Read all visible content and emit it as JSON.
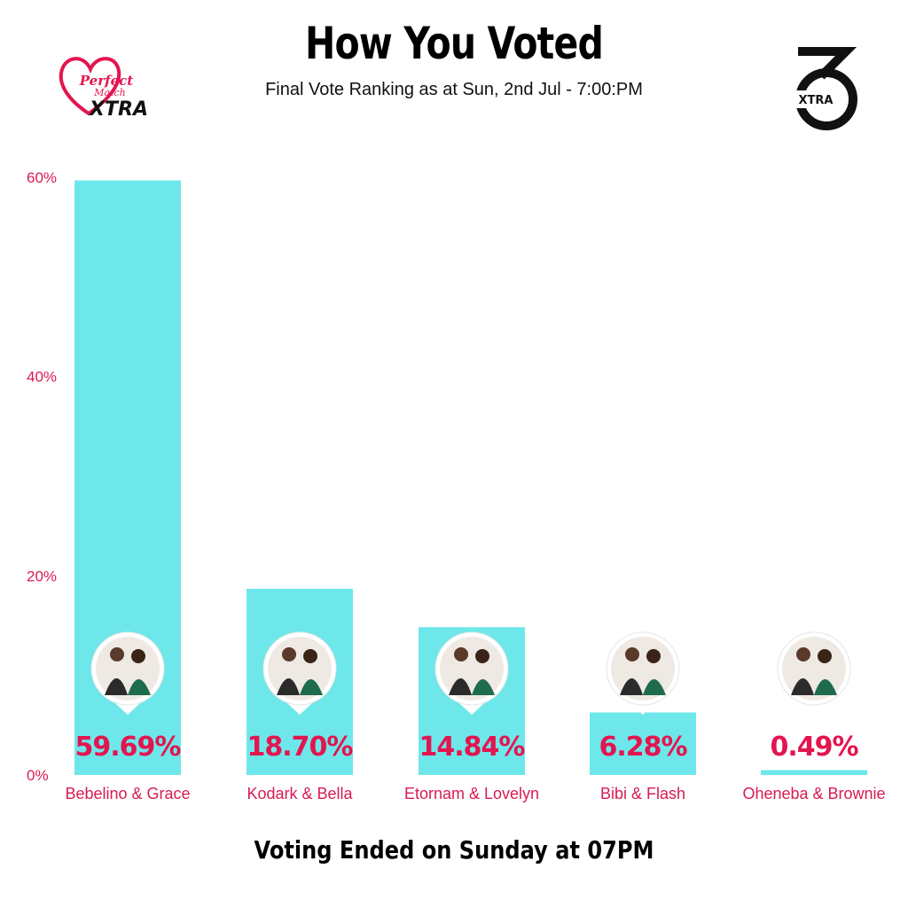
{
  "header": {
    "title": "How You Voted",
    "subtitle": "Final Vote Ranking as at Sun, 2nd Jul - 7:00:PM"
  },
  "logos": {
    "left": {
      "icon": "heart-logo-icon",
      "line1": "Perfect",
      "line2": "Match",
      "line3": "XTRA"
    },
    "right": {
      "icon": "tv3-xtra-logo-icon",
      "text": "XTRA"
    }
  },
  "footer": {
    "text": "Voting Ended on Sunday at 07PM"
  },
  "colors": {
    "bar": "#6ee7ea",
    "accent": "#e3154f",
    "axis_text": "#d81b52"
  },
  "chart_data": {
    "type": "bar",
    "title": "How You Voted",
    "subtitle": "Final Vote Ranking as at Sun, 2nd Jul - 7:00:PM",
    "categories": [
      "Bebelino & Grace",
      "Kodark & Bella",
      "Etornam & Lovelyn",
      "Bibi & Flash",
      "Oheneba & Brownie"
    ],
    "values": [
      59.69,
      18.7,
      14.84,
      6.28,
      0.49
    ],
    "value_labels": [
      "59.69%",
      "18.70%",
      "14.84%",
      "6.28%",
      "0.49%"
    ],
    "yticks": [
      0,
      20,
      40,
      60
    ],
    "ytick_labels": [
      "0%",
      "20%",
      "40%",
      "60%"
    ],
    "ylim": [
      0,
      60
    ],
    "grid": false,
    "xlabel": "",
    "ylabel": ""
  }
}
